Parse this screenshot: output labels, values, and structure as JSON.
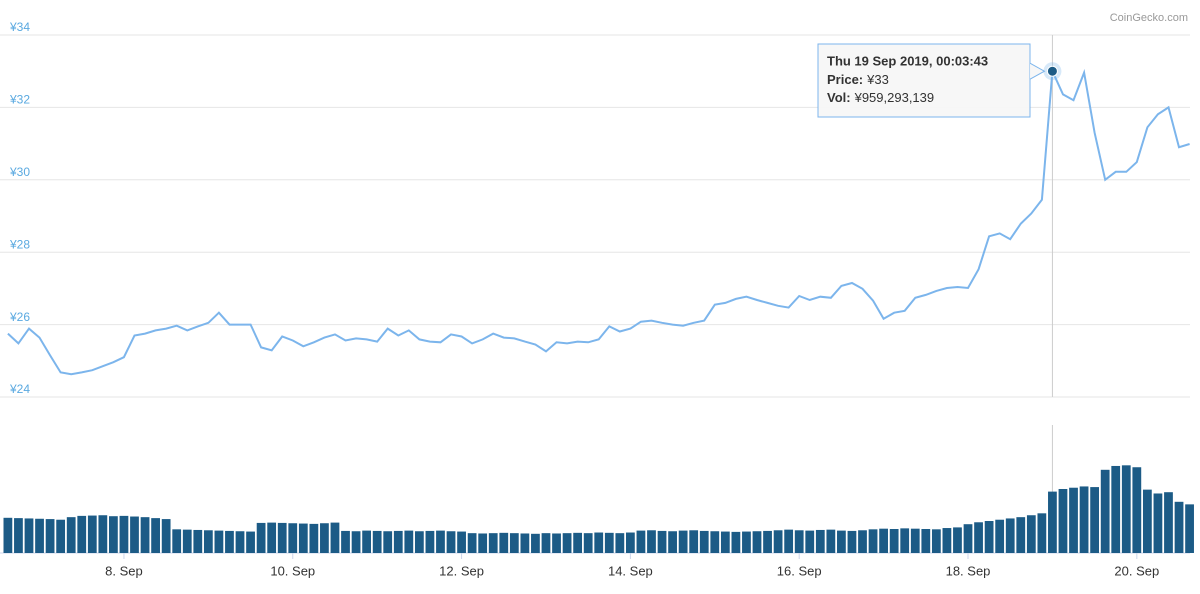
{
  "chart_data": {
    "type": "line",
    "credit": "CoinGecko.com",
    "x": [
      6.625,
      6.75,
      6.875,
      7,
      7.125,
      7.25,
      7.375,
      7.5,
      7.625,
      7.75,
      7.875,
      8,
      8.125,
      8.25,
      8.375,
      8.5,
      8.625,
      8.75,
      8.875,
      9,
      9.125,
      9.25,
      9.375,
      9.5,
      9.625,
      9.75,
      9.875,
      10,
      10.125,
      10.25,
      10.375,
      10.5,
      10.625,
      10.75,
      10.875,
      11,
      11.125,
      11.25,
      11.375,
      11.5,
      11.625,
      11.75,
      11.875,
      12,
      12.125,
      12.25,
      12.375,
      12.5,
      12.625,
      12.75,
      12.875,
      13,
      13.125,
      13.25,
      13.375,
      13.5,
      13.625,
      13.75,
      13.875,
      14,
      14.125,
      14.25,
      14.375,
      14.5,
      14.625,
      14.75,
      14.875,
      15,
      15.125,
      15.25,
      15.375,
      15.5,
      15.625,
      15.75,
      15.875,
      16,
      16.125,
      16.25,
      16.375,
      16.5,
      16.625,
      16.75,
      16.875,
      17,
      17.125,
      17.25,
      17.375,
      17.5,
      17.625,
      17.75,
      17.875,
      18,
      18.125,
      18.25,
      18.375,
      18.5,
      18.625,
      18.75,
      18.875,
      19,
      19.125,
      19.25,
      19.375,
      19.5,
      19.625,
      19.75,
      19.875,
      20,
      20.125,
      20.25,
      20.375,
      20.5,
      20.625
    ],
    "series": [
      {
        "type": "line",
        "color": "#7cb5ec",
        "values": [
          25.75,
          25.48,
          25.89,
          25.64,
          25.15,
          24.68,
          24.63,
          24.68,
          24.74,
          24.85,
          24.96,
          25.1,
          25.7,
          25.75,
          25.84,
          25.89,
          25.97,
          25.84,
          25.95,
          26.05,
          26.33,
          26.0,
          26.0,
          26.0,
          25.37,
          25.29,
          25.67,
          25.56,
          25.4,
          25.51,
          25.64,
          25.73,
          25.56,
          25.62,
          25.59,
          25.53,
          25.89,
          25.7,
          25.84,
          25.59,
          25.53,
          25.51,
          25.73,
          25.67,
          25.48,
          25.59,
          25.75,
          25.64,
          25.62,
          25.53,
          25.45,
          25.26,
          25.51,
          25.48,
          25.53,
          25.51,
          25.59,
          25.95,
          25.81,
          25.89,
          26.08,
          26.11,
          26.05,
          26.0,
          25.97,
          26.05,
          26.11,
          26.55,
          26.6,
          26.71,
          26.77,
          26.68,
          26.6,
          26.52,
          26.47,
          26.79,
          26.68,
          26.77,
          26.74,
          27.07,
          27.15,
          26.99,
          26.66,
          26.16,
          26.33,
          26.38,
          26.74,
          26.82,
          26.93,
          27.01,
          27.04,
          27.01,
          27.53,
          28.44,
          28.52,
          28.36,
          28.79,
          29.07,
          29.45,
          33,
          32.36,
          32.2,
          32.96,
          31.3,
          30.0,
          30.22,
          30.22,
          30.49,
          31.45,
          31.81,
          32.0,
          30.9,
          30.99
        ]
      },
      {
        "type": "bar",
        "axis": "y2",
        "color": "#1c5b86",
        "values": [
          550000000,
          545000000,
          540000000,
          535000000,
          530000000,
          520000000,
          560000000,
          580000000,
          585000000,
          590000000,
          575000000,
          580000000,
          570000000,
          560000000,
          545000000,
          530000000,
          370000000,
          365000000,
          360000000,
          355000000,
          350000000,
          345000000,
          340000000,
          335000000,
          470000000,
          475000000,
          470000000,
          465000000,
          460000000,
          455000000,
          465000000,
          475000000,
          345000000,
          340000000,
          350000000,
          345000000,
          340000000,
          345000000,
          350000000,
          340000000,
          345000000,
          350000000,
          340000000,
          335000000,
          310000000,
          305000000,
          310000000,
          315000000,
          310000000,
          305000000,
          300000000,
          310000000,
          305000000,
          310000000,
          315000000,
          310000000,
          320000000,
          315000000,
          310000000,
          320000000,
          350000000,
          355000000,
          345000000,
          340000000,
          350000000,
          355000000,
          345000000,
          340000000,
          335000000,
          330000000,
          335000000,
          340000000,
          345000000,
          355000000,
          365000000,
          355000000,
          350000000,
          360000000,
          365000000,
          350000000,
          345000000,
          355000000,
          370000000,
          380000000,
          375000000,
          385000000,
          380000000,
          375000000,
          370000000,
          390000000,
          400000000,
          450000000,
          480000000,
          500000000,
          520000000,
          540000000,
          560000000,
          590000000,
          620000000,
          959293139,
          1000000000,
          1020000000,
          1040000000,
          1030000000,
          1300000000,
          1360000000,
          1370000000,
          1340000000,
          990000000,
          930000000,
          950000000,
          800000000,
          760000000
        ]
      }
    ],
    "xlim": [
      6.65,
      20.63
    ],
    "xticks": [
      {
        "value": 8,
        "label": "8. Sep"
      },
      {
        "value": 10,
        "label": "10. Sep"
      },
      {
        "value": 12,
        "label": "12. Sep"
      },
      {
        "value": 14,
        "label": "14. Sep"
      },
      {
        "value": 16,
        "label": "16. Sep"
      },
      {
        "value": 18,
        "label": "18. Sep"
      },
      {
        "value": 20,
        "label": "20. Sep"
      }
    ],
    "ylim": [
      24,
      34
    ],
    "yticks": [
      {
        "value": 24,
        "label": "¥24"
      },
      {
        "value": 26,
        "label": "¥26"
      },
      {
        "value": 28,
        "label": "¥28"
      },
      {
        "value": 30,
        "label": "¥30"
      },
      {
        "value": 32,
        "label": "¥32"
      },
      {
        "value": 34,
        "label": "¥34"
      }
    ],
    "y2lim": [
      0,
      2000000000
    ],
    "grid": true,
    "tooltip": {
      "index": 99,
      "title": "Thu 19 Sep 2019, 00:03:43",
      "rows": [
        {
          "label": "Price:",
          "value": "¥33"
        },
        {
          "label": "Vol:",
          "value": "¥959,293,139"
        }
      ]
    }
  }
}
